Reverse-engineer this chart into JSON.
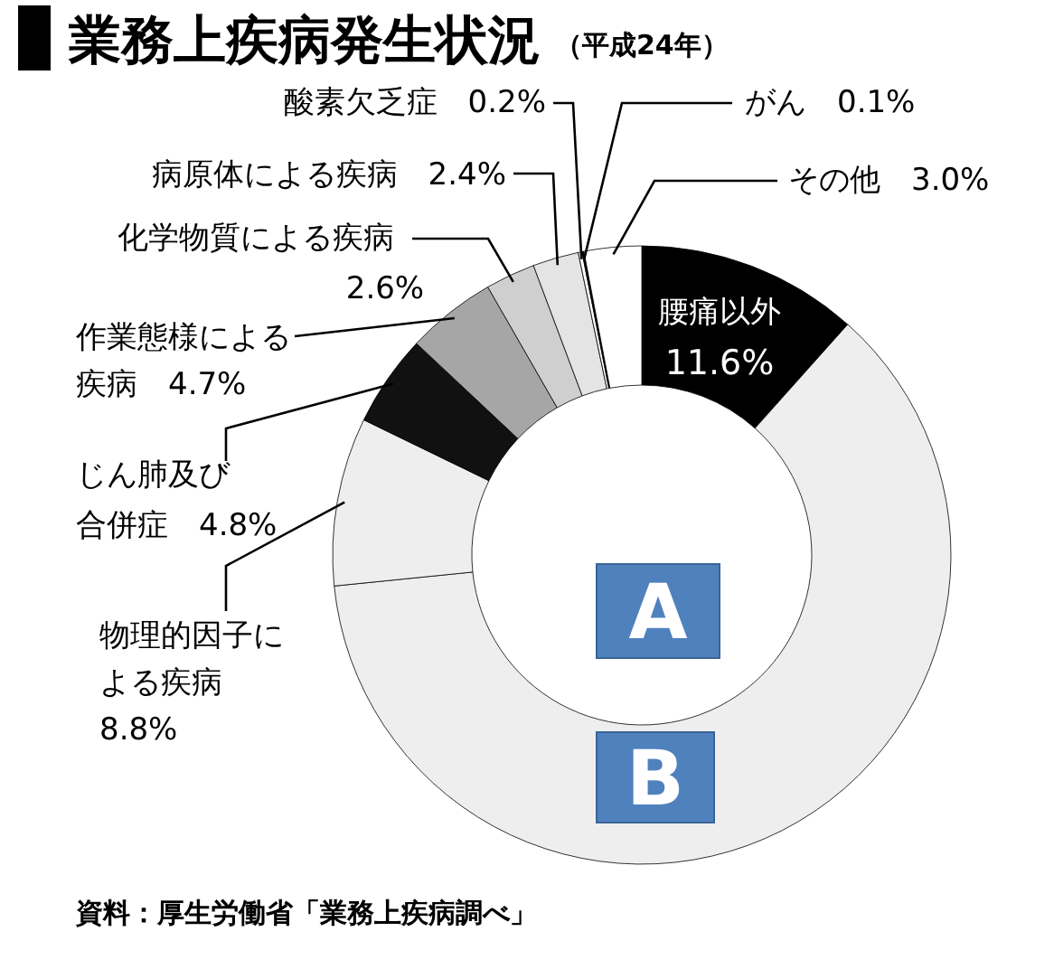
{
  "chart_data": {
    "type": "donut",
    "title": "業務上疾病発生状況",
    "subtitle": "（平成24年）",
    "categories": [
      "腰痛以外",
      "B",
      "物理的因子による疾病",
      "じん肺及び合併症",
      "作業態様による疾病",
      "化学物質による疾病",
      "病原体による疾病",
      "酸素欠乏症",
      "がん",
      "その他"
    ],
    "values": [
      11.6,
      61.8,
      8.8,
      4.8,
      4.7,
      2.6,
      2.4,
      0.2,
      0.1,
      3.0
    ],
    "colors": [
      "#000000",
      "#eeeeee",
      "#eeeeee",
      "#111111",
      "#a6a6a6",
      "#cfcfcf",
      "#e4e4e4",
      "#ffffff",
      "#000000",
      "#ffffff"
    ],
    "value_labels": [
      "11.6%",
      null,
      "8.8%",
      "4.8%",
      "4.7%",
      "2.6%",
      "2.4%",
      "0.2%",
      "0.1%",
      "3.0%"
    ],
    "annotations": [
      "A",
      "資料：厚生労働省「業務上疾病調べ」"
    ]
  }
}
